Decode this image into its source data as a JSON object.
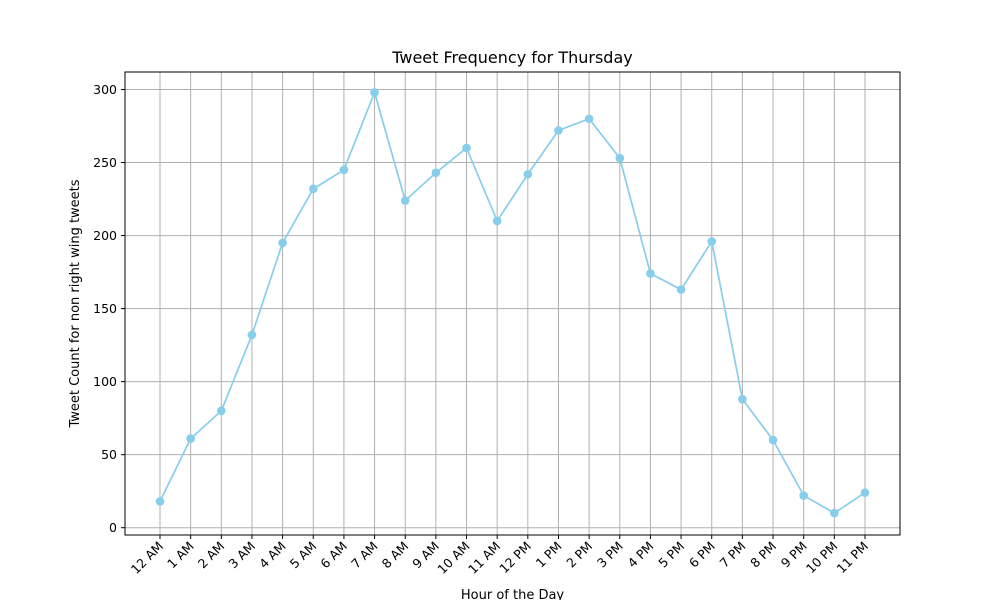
{
  "chart_data": {
    "type": "line",
    "title": "Tweet Frequency for Thursday",
    "xlabel": "Hour of the Day",
    "ylabel": "Tweet Count for non right wing tweets",
    "categories": [
      "12 AM",
      "1 AM",
      "2 AM",
      "3 AM",
      "4 AM",
      "5 AM",
      "6 AM",
      "7 AM",
      "8 AM",
      "9 AM",
      "10 AM",
      "11 AM",
      "12 PM",
      "1 PM",
      "2 PM",
      "3 PM",
      "4 PM",
      "5 PM",
      "6 PM",
      "7 PM",
      "8 PM",
      "9 PM",
      "10 PM",
      "11 PM"
    ],
    "series": [
      {
        "values": [
          18,
          61,
          80,
          132,
          195,
          232,
          245,
          298,
          224,
          243,
          260,
          210,
          242,
          272,
          280,
          253,
          174,
          163,
          196,
          88,
          60,
          22,
          10,
          24
        ],
        "color": "#87ceeb"
      }
    ],
    "ylim": [
      -5,
      312
    ],
    "yticks": [
      0,
      50,
      100,
      150,
      200,
      250,
      300
    ],
    "grid": true,
    "marker": "circle"
  }
}
